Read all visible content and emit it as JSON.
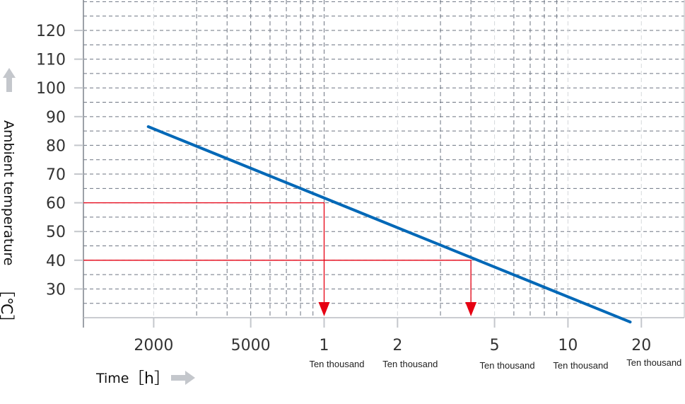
{
  "chart_data": {
    "type": "line",
    "xscale": "log",
    "xlim": [
      1030,
      300000
    ],
    "ylim": [
      20,
      130.6
    ],
    "grid": true,
    "xlabel": "Time",
    "xunit": "［h］",
    "ylabel": "Ambient temperature",
    "yunit": "［℃］",
    "yticks": [
      30,
      40,
      50,
      60,
      70,
      80,
      90,
      100,
      110,
      120
    ],
    "xticks": [
      {
        "value": 2000,
        "label": "2000",
        "sublabel": ""
      },
      {
        "value": 5000,
        "label": "5000",
        "sublabel": ""
      },
      {
        "value": 10000,
        "label": "1",
        "sublabel": "Ten thousand"
      },
      {
        "value": 20000,
        "label": "2",
        "sublabel": "Ten thousand"
      },
      {
        "value": 50000,
        "label": "5",
        "sublabel": "Ten thousand"
      },
      {
        "value": 100000,
        "label": "10",
        "sublabel": "Ten thousand"
      },
      {
        "value": 200000,
        "label": "20",
        "sublabel": "Ten thousand"
      }
    ],
    "series": [
      {
        "color": "#0068b7",
        "points": [
          [
            1900,
            86.5
          ],
          [
            180000,
            18.5
          ]
        ]
      }
    ],
    "annotations": [
      {
        "type": "reference",
        "color": "#e60012",
        "temperature": 60,
        "time": 10000
      },
      {
        "type": "reference",
        "color": "#e60012",
        "temperature": 40,
        "time": 40000
      }
    ]
  }
}
